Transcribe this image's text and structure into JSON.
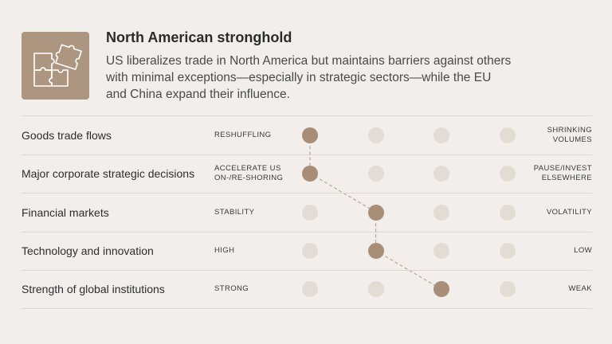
{
  "header": {
    "title": "North American stronghold",
    "description": "US liberalizes trade in North America but maintains barriers against others with minimal exceptions—especially in strategic sectors—while the EU and China expand their influence.",
    "icon": "puzzle-icon"
  },
  "colors": {
    "background": "#f1eeeb",
    "accent": "#ad9680",
    "dot_selected": "#a88e76",
    "dot_inactive": "#e2dcd4",
    "divider": "#dcd6d0"
  },
  "rows": [
    {
      "label": "Goods trade flows",
      "low": "RESHUFFLING",
      "high": "SHRINKING\nVOLUMES",
      "position": 1
    },
    {
      "label": "Major corporate strategic decisions",
      "low": "ACCELERATE US\nON-/RE-SHORING",
      "high": "PAUSE/INVEST\nELSEWHERE",
      "position": 1
    },
    {
      "label": "Financial markets",
      "low": "STABILITY",
      "high": "VOLATILITY",
      "position": 2
    },
    {
      "label": "Technology and innovation",
      "low": "HIGH",
      "high": "LOW",
      "position": 2
    },
    {
      "label": "Strength of global institutions",
      "low": "STRONG",
      "high": "WEAK",
      "position": 3
    }
  ]
}
